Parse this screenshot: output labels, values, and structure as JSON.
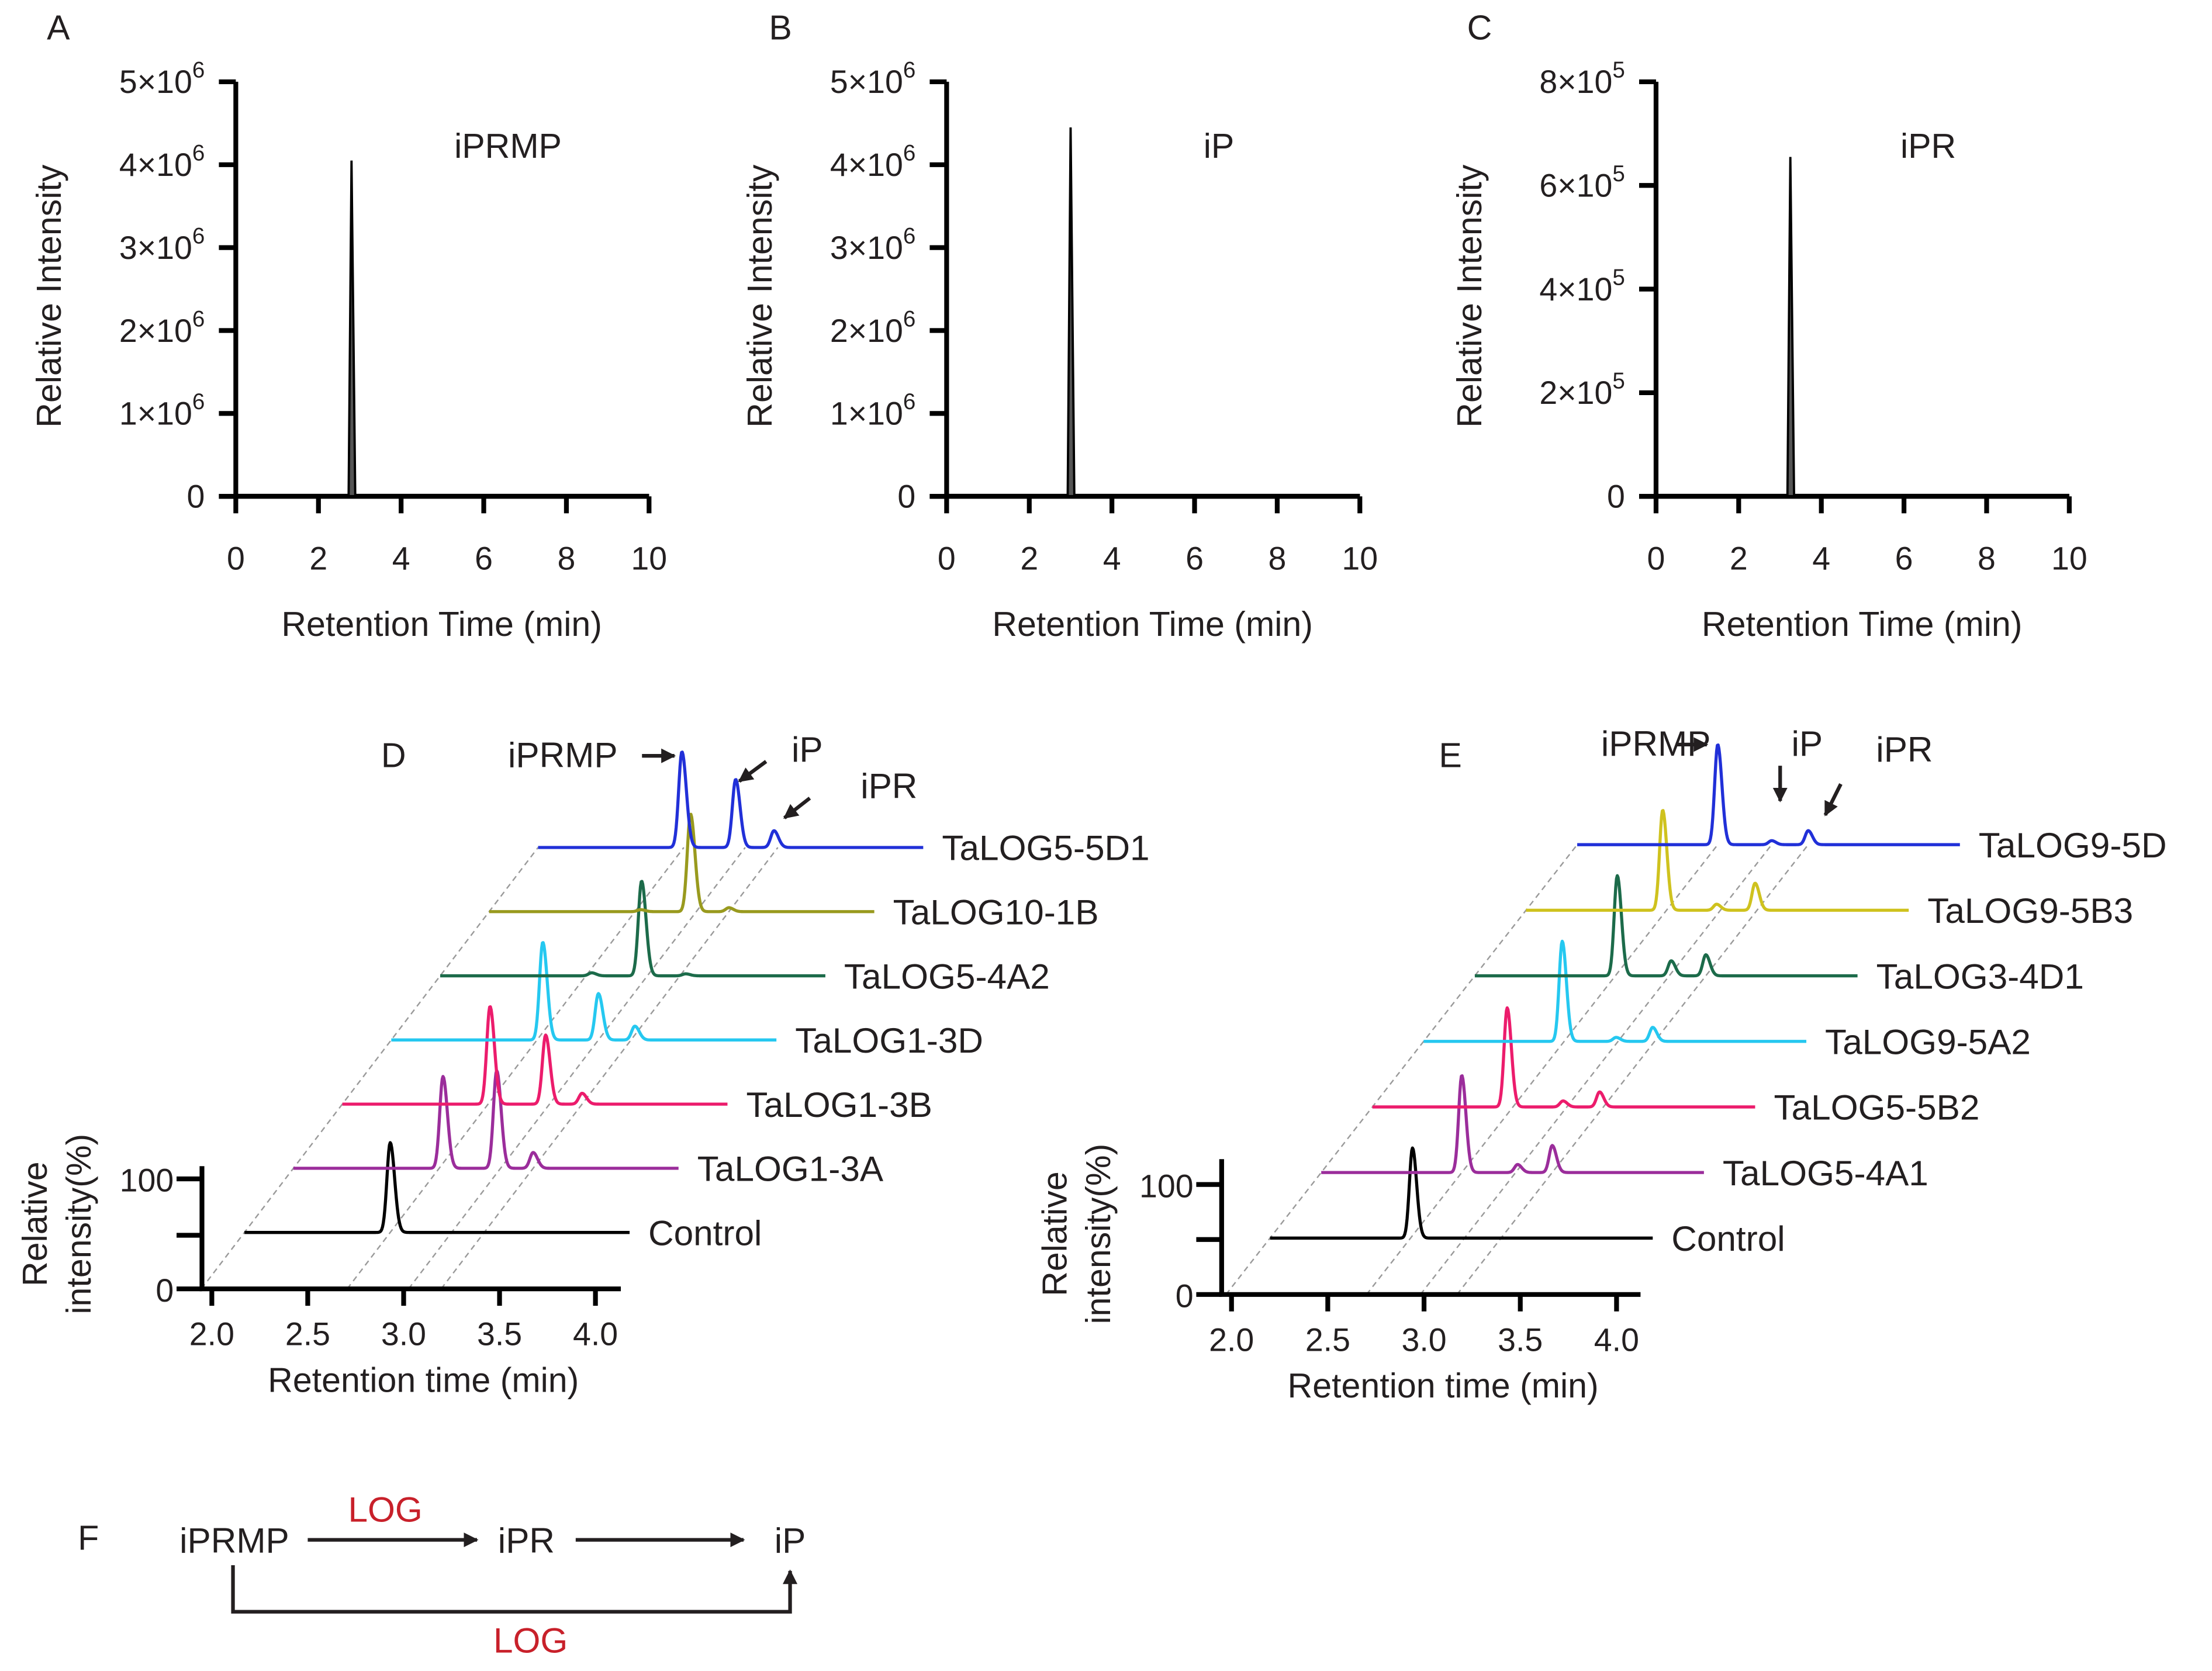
{
  "colors": {
    "axis": "#000000",
    "enzyme_label": "#c8202a",
    "guide": "#9a9a9a"
  },
  "chart_data": [
    {
      "panel": "A",
      "type": "line",
      "title": "iPRMP",
      "xlabel": "Retention Time (min)",
      "ylabel": "Relative Intensity",
      "xlim": [
        0,
        10
      ],
      "ylim": [
        0,
        5000000
      ],
      "xticks": [
        "0",
        "2",
        "4",
        "6",
        "8",
        "10"
      ],
      "yticks": [
        {
          "m": "0",
          "e": ""
        },
        {
          "m": "1×10",
          "e": "6"
        },
        {
          "m": "2×10",
          "e": "6"
        },
        {
          "m": "3×10",
          "e": "6"
        },
        {
          "m": "4×10",
          "e": "6"
        },
        {
          "m": "5×10",
          "e": "6"
        }
      ],
      "peak": {
        "x": 2.8,
        "y": 4050000
      }
    },
    {
      "panel": "B",
      "type": "line",
      "title": "iP",
      "xlabel": "Retention Time (min)",
      "ylabel": "Relative Intensity",
      "xlim": [
        0,
        10
      ],
      "ylim": [
        0,
        5000000
      ],
      "xticks": [
        "0",
        "2",
        "4",
        "6",
        "8",
        "10"
      ],
      "yticks": [
        {
          "m": "0",
          "e": ""
        },
        {
          "m": "1×10",
          "e": "6"
        },
        {
          "m": "2×10",
          "e": "6"
        },
        {
          "m": "3×10",
          "e": "6"
        },
        {
          "m": "4×10",
          "e": "6"
        },
        {
          "m": "5×10",
          "e": "6"
        }
      ],
      "peak": {
        "x": 3.0,
        "y": 4450000
      }
    },
    {
      "panel": "C",
      "type": "line",
      "title": "iPR",
      "xlabel": "Retention Time (min)",
      "ylabel": "Relative Intensity",
      "xlim": [
        0,
        10
      ],
      "ylim": [
        0,
        800000
      ],
      "xticks": [
        "0",
        "2",
        "4",
        "6",
        "8",
        "10"
      ],
      "yticks": [
        {
          "m": "0",
          "e": ""
        },
        {
          "m": "2×10",
          "e": "5"
        },
        {
          "m": "4×10",
          "e": "5"
        },
        {
          "m": "6×10",
          "e": "5"
        },
        {
          "m": "8×10",
          "e": "5"
        }
      ],
      "peak": {
        "x": 3.25,
        "y": 655000
      }
    },
    {
      "panel": "D",
      "type": "line",
      "xlabel": "Retention time (min)",
      "ylabel": [
        "Relative",
        "intensity(%)"
      ],
      "xlim": [
        2.0,
        4.0
      ],
      "ylim": [
        0,
        100
      ],
      "xticks": [
        "2.0",
        "2.5",
        "3.0",
        "3.5",
        "4.0"
      ],
      "yticks": [
        "0",
        "100"
      ],
      "annotations": [
        "iPRMP",
        "iP",
        "iPR"
      ],
      "guide_times": [
        2.93,
        3.25,
        3.42
      ],
      "series": [
        {
          "name": "Control",
          "color": "#000000",
          "peaks": [
            {
              "t": 2.93,
              "h": 91
            }
          ]
        },
        {
          "name": "TaLOG1-3A",
          "color": "#9b2d9b",
          "peaks": [
            {
              "t": 2.95,
              "h": 93
            },
            {
              "t": 3.23,
              "h": 99
            },
            {
              "t": 3.42,
              "h": 16
            }
          ]
        },
        {
          "name": "TaLOG1-3B",
          "color": "#ec1c6c",
          "peaks": [
            {
              "t": 2.94,
              "h": 99
            },
            {
              "t": 3.23,
              "h": 70
            },
            {
              "t": 3.42,
              "h": 11
            }
          ]
        },
        {
          "name": "TaLOG1-3D",
          "color": "#25c8f0",
          "peaks": [
            {
              "t": 2.96,
              "h": 99
            },
            {
              "t": 3.25,
              "h": 47
            },
            {
              "t": 3.44,
              "h": 14
            }
          ]
        },
        {
          "name": "TaLOG5-4A2",
          "color": "#1c6b4a",
          "peaks": [
            {
              "t": 2.96,
              "h": 3
            },
            {
              "t": 3.22,
              "h": 96
            },
            {
              "t": 3.45,
              "h": 2
            }
          ]
        },
        {
          "name": "TaLOG10-1B",
          "color": "#999a1e",
          "peaks": [
            {
              "t": 2.96,
              "h": 2
            },
            {
              "t": 3.22,
              "h": 99
            },
            {
              "t": 3.42,
              "h": 4
            }
          ]
        },
        {
          "name": "TaLOG5-5D1",
          "color": "#2130d8",
          "peaks": [
            {
              "t": 2.92,
              "h": 97
            },
            {
              "t": 3.2,
              "h": 69
            },
            {
              "t": 3.4,
              "h": 17
            }
          ]
        }
      ]
    },
    {
      "panel": "E",
      "type": "line",
      "xlabel": "Retention time (min)",
      "ylabel": [
        "Relative",
        "intensity(%)"
      ],
      "xlim": [
        2.0,
        4.0
      ],
      "ylim": [
        0,
        100
      ],
      "xticks": [
        "2.0",
        "2.5",
        "3.0",
        "3.5",
        "4.0"
      ],
      "yticks": [
        "0",
        "100"
      ],
      "annotations": [
        "iPRMP",
        "iP",
        "iPR"
      ],
      "guide_times": [
        2.93,
        3.21,
        3.4
      ],
      "series": [
        {
          "name": "Control",
          "color": "#000000",
          "peaks": [
            {
              "t": 2.94,
              "h": 90
            }
          ]
        },
        {
          "name": "TaLOG5-4A1",
          "color": "#9b2d9b",
          "peaks": [
            {
              "t": 2.93,
              "h": 97
            },
            {
              "t": 3.22,
              "h": 8
            },
            {
              "t": 3.4,
              "h": 27
            }
          ]
        },
        {
          "name": "TaLOG5-5B2",
          "color": "#ec1c6c",
          "peaks": [
            {
              "t": 2.9,
              "h": 99
            },
            {
              "t": 3.19,
              "h": 6
            },
            {
              "t": 3.38,
              "h": 15
            }
          ]
        },
        {
          "name": "TaLOG9-5A2",
          "color": "#25c8f0",
          "peaks": [
            {
              "t": 2.92,
              "h": 100
            },
            {
              "t": 3.2,
              "h": 4
            },
            {
              "t": 3.39,
              "h": 14
            }
          ]
        },
        {
          "name": "TaLOG3-4D1",
          "color": "#1c6b4a",
          "peaks": [
            {
              "t": 2.94,
              "h": 100
            },
            {
              "t": 3.22,
              "h": 15
            },
            {
              "t": 3.4,
              "h": 21
            }
          ]
        },
        {
          "name": "TaLOG9-5B3",
          "color": "#cfc21e",
          "peaks": [
            {
              "t": 2.91,
              "h": 100
            },
            {
              "t": 3.19,
              "h": 6
            },
            {
              "t": 3.39,
              "h": 27
            }
          ]
        },
        {
          "name": "TaLOG9-5D",
          "color": "#2130d8",
          "peaks": [
            {
              "t": 2.93,
              "h": 100
            },
            {
              "t": 3.21,
              "h": 4
            },
            {
              "t": 3.4,
              "h": 14
            }
          ]
        }
      ]
    }
  ],
  "scheme": {
    "panel": "F",
    "substrate": "iPRMP",
    "intermediate": "iPR",
    "product": "iP",
    "enzyme_top": "LOG",
    "enzyme_bottom": "LOG"
  }
}
